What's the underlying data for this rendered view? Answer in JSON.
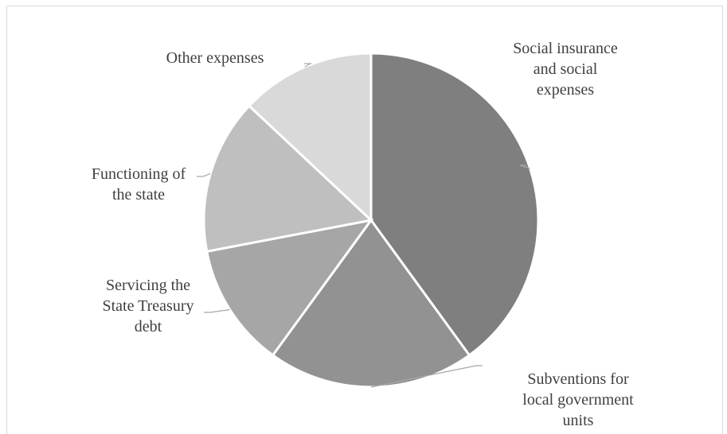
{
  "chart_data": {
    "type": "pie",
    "title": "",
    "start_angle_deg": 0,
    "direction": "clockwise",
    "slices": [
      {
        "label": "Social insurance\nand social\nexpenses",
        "value": 40,
        "color": "#7f7f7f"
      },
      {
        "label": "Subventions for\nlocal government\nunits",
        "value": 20,
        "color": "#929292"
      },
      {
        "label": "Servicing the\nState Treasury\ndebt",
        "value": 12,
        "color": "#a6a6a6"
      },
      {
        "label": "Functioning of\nthe state",
        "value": 15,
        "color": "#bfbfbf"
      },
      {
        "label": "Other expenses",
        "value": 13,
        "color": "#d9d9d9"
      }
    ],
    "legend": "none",
    "leader_color": "#a6a6a6"
  }
}
